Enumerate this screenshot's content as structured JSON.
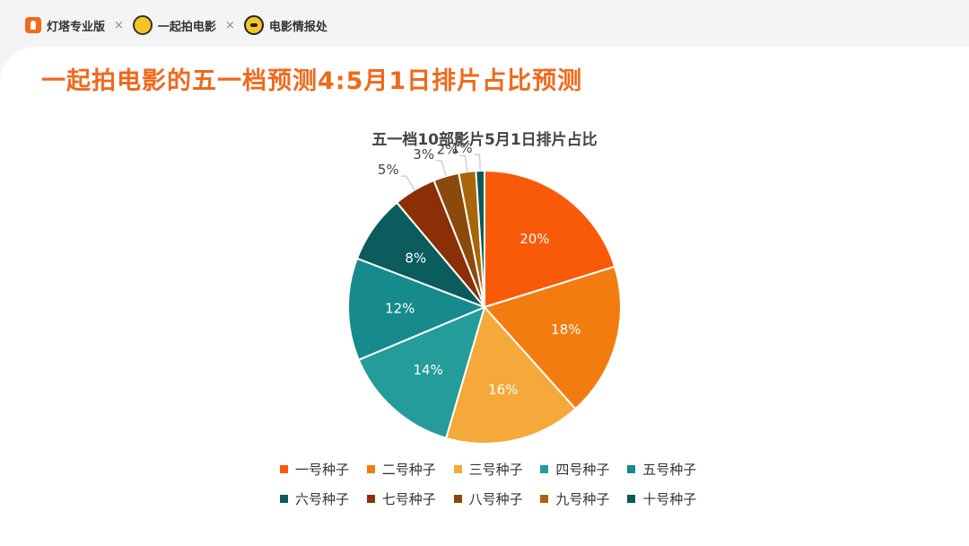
{
  "header": {
    "brands": [
      {
        "name": "灯塔专业版",
        "icon": "lighthouse-logo-icon"
      },
      {
        "name": "一起拍电影",
        "icon": "yiqipai-logo-icon"
      },
      {
        "name": "电影情报处",
        "icon": "dianying-qingbaochu-logo-icon"
      }
    ],
    "separator": "×"
  },
  "page_title": "一起拍电影的五一档预测4:5月1日排片占比预测",
  "chart_data": {
    "type": "pie",
    "title": "五一档10部影片5月1日排片占比",
    "legend_position": "bottom",
    "categories": [
      "一号种子",
      "二号种子",
      "三号种子",
      "四号种子",
      "五号种子",
      "六号种子",
      "七号种子",
      "八号种子",
      "九号种子",
      "十号种子"
    ],
    "values": [
      20,
      18,
      16,
      14,
      12,
      8,
      5,
      3,
      2,
      1
    ],
    "labels": [
      "20%",
      "18%",
      "16%",
      "14%",
      "12%",
      "8%",
      "5%",
      "3%",
      "2%",
      "1%"
    ],
    "colors": [
      "#f95a0a",
      "#f37c10",
      "#f5a93a",
      "#249c9a",
      "#168a8c",
      "#0b5c5c",
      "#8a2f06",
      "#8b4a0c",
      "#a8650c",
      "#0a5a55"
    ]
  }
}
